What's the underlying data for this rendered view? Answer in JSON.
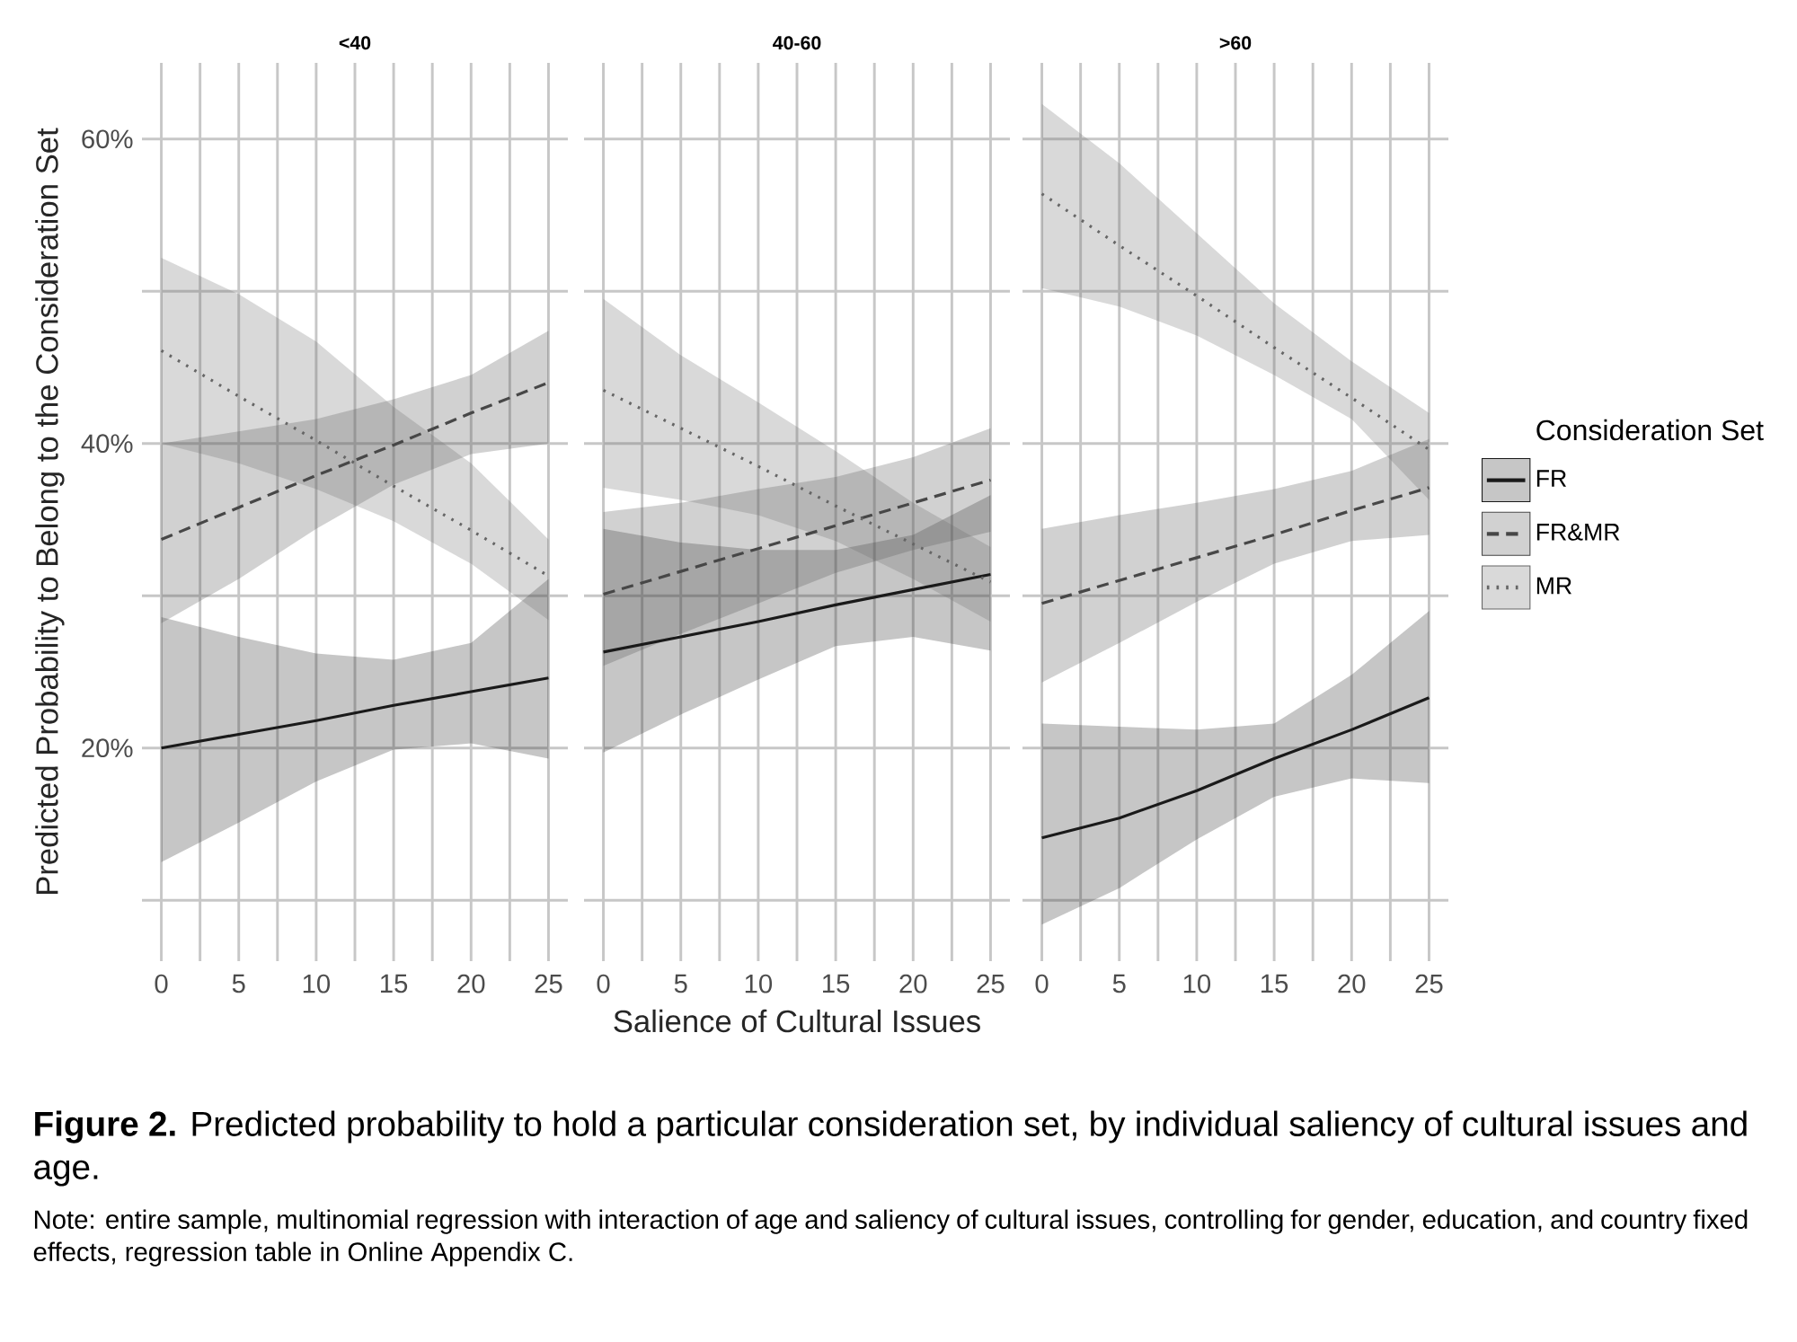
{
  "chart_data": [
    {
      "type": "line",
      "title": "<40",
      "ylabel": "Predicted Probability to Belong to the Consideration Set",
      "x": [
        0,
        5,
        10,
        15,
        20,
        25
      ],
      "xlim": [
        -1.25,
        26.25
      ],
      "ylim": [
        6,
        65
      ],
      "xticks": [
        0,
        {
          "value": 2.5,
          "label": null
        },
        5,
        {
          "value": 7.5,
          "label": null
        },
        10,
        {
          "value": 12.5,
          "label": null
        },
        15,
        {
          "value": 17.5,
          "label": null
        },
        20,
        {
          "value": 22.5,
          "label": null
        },
        25
      ],
      "yticks": [
        {
          "value": 10,
          "label": null
        },
        {
          "value": 20,
          "label": "20%"
        },
        {
          "value": 30,
          "label": null
        },
        {
          "value": 40,
          "label": "40%"
        },
        {
          "value": 50,
          "label": null
        },
        {
          "value": 60,
          "label": "60%"
        }
      ],
      "grid": true,
      "series": [
        {
          "color": "#1a1a1a",
          "line_style": "solid",
          "values": [
            20.0,
            20.9,
            21.8,
            22.8,
            23.7,
            24.6
          ],
          "lower": [
            12.5,
            15.1,
            17.8,
            19.9,
            20.3,
            19.3
          ],
          "upper": [
            28.6,
            27.3,
            26.2,
            25.8,
            26.9,
            31.1
          ]
        },
        {
          "color": "#474747",
          "line_style": "dashed",
          "values": [
            33.7,
            35.8,
            37.9,
            39.9,
            42.0,
            44.0
          ],
          "lower": [
            28.2,
            31.1,
            34.4,
            37.3,
            39.3,
            40.0
          ],
          "upper": [
            40.0,
            40.8,
            41.6,
            42.9,
            44.5,
            47.4
          ]
        },
        {
          "color": "#666666",
          "line_style": "dotted",
          "values": [
            46.1,
            43.1,
            40.2,
            37.2,
            34.3,
            31.3
          ],
          "lower": [
            40.0,
            38.7,
            37.0,
            34.9,
            32.1,
            28.4
          ],
          "upper": [
            52.2,
            49.8,
            46.7,
            42.4,
            38.7,
            33.7
          ]
        }
      ],
      "annotations": [
        "**Figure 2.** Predicted probability to hold a particular consideration set, by individual saliency of cultural issues and age.",
        "Note: entire sample, multinomial regression with interaction of age and saliency of cultural issues, controlling for gender, education, and country fixed effects, regression table in Online Appendix C."
      ]
    },
    {
      "type": "line",
      "title": "40-60",
      "xlabel": "Salience of Cultural Issues",
      "tick_labels": "x",
      "x": [
        0,
        5,
        10,
        15,
        20,
        25
      ],
      "xlim": [
        -1.25,
        26.25
      ],
      "ylim": [
        6,
        65
      ],
      "xticks": [
        0,
        {
          "value": 2.5,
          "label": null
        },
        5,
        {
          "value": 7.5,
          "label": null
        },
        10,
        {
          "value": 12.5,
          "label": null
        },
        15,
        {
          "value": 17.5,
          "label": null
        },
        20,
        {
          "value": 22.5,
          "label": null
        },
        25
      ],
      "yticks": [
        {
          "value": 10,
          "label": null
        },
        {
          "value": 20,
          "label": null
        },
        {
          "value": 30,
          "label": null
        },
        {
          "value": 40,
          "label": null
        },
        {
          "value": 50,
          "label": null
        },
        {
          "value": 60,
          "label": null
        }
      ],
      "grid": true,
      "series": [
        {
          "color": "#1a1a1a",
          "line_style": "solid",
          "values": [
            26.3,
            27.3,
            28.3,
            29.4,
            30.4,
            31.4
          ],
          "lower": [
            19.7,
            22.2,
            24.5,
            26.7,
            27.3,
            26.4
          ],
          "upper": [
            34.4,
            33.5,
            33.0,
            33.0,
            34.0,
            36.6
          ]
        },
        {
          "color": "#474747",
          "line_style": "dashed",
          "values": [
            30.1,
            31.6,
            33.1,
            34.6,
            36.1,
            37.6
          ],
          "lower": [
            25.4,
            27.5,
            29.5,
            31.5,
            33.0,
            34.2
          ],
          "upper": [
            35.5,
            36.1,
            37.0,
            37.8,
            39.1,
            41.0
          ]
        },
        {
          "color": "#666666",
          "line_style": "dotted",
          "values": [
            43.5,
            41.0,
            38.5,
            35.9,
            33.4,
            30.9
          ],
          "lower": [
            37.1,
            36.3,
            35.3,
            33.6,
            31.1,
            28.3
          ],
          "upper": [
            49.5,
            45.8,
            42.7,
            39.5,
            36.1,
            33.2
          ]
        }
      ]
    },
    {
      "type": "line",
      "title": ">60",
      "tick_labels": "x",
      "legend": "right",
      "legend_title": "Consideration Set",
      "x": [
        0,
        5,
        10,
        15,
        20,
        25
      ],
      "xlim": [
        -1.25,
        26.25
      ],
      "ylim": [
        6,
        65
      ],
      "xticks": [
        0,
        {
          "value": 2.5,
          "label": null
        },
        5,
        {
          "value": 7.5,
          "label": null
        },
        10,
        {
          "value": 12.5,
          "label": null
        },
        15,
        {
          "value": 17.5,
          "label": null
        },
        20,
        {
          "value": 22.5,
          "label": null
        },
        25
      ],
      "yticks": [
        {
          "value": 10,
          "label": null
        },
        {
          "value": 20,
          "label": null
        },
        {
          "value": 30,
          "label": null
        },
        {
          "value": 40,
          "label": null
        },
        {
          "value": 50,
          "label": null
        },
        {
          "value": 60,
          "label": null
        }
      ],
      "grid": true,
      "series": [
        {
          "name": "FR",
          "color": "#1a1a1a",
          "line_style": "solid",
          "values": [
            14.1,
            15.4,
            17.2,
            19.3,
            21.2,
            23.3
          ],
          "lower": [
            8.4,
            10.8,
            14.0,
            16.8,
            18.0,
            17.7
          ],
          "upper": [
            21.6,
            21.4,
            21.2,
            21.6,
            24.8,
            29.0
          ]
        },
        {
          "name": "FR&MR",
          "color": "#474747",
          "line_style": "dashed",
          "values": [
            29.5,
            31.0,
            32.5,
            34.0,
            35.6,
            37.1
          ],
          "lower": [
            24.3,
            26.9,
            29.6,
            32.1,
            33.6,
            34.0
          ],
          "upper": [
            34.4,
            35.3,
            36.1,
            37.0,
            38.2,
            40.3
          ]
        },
        {
          "name": "MR",
          "color": "#666666",
          "line_style": "dotted",
          "values": [
            56.4,
            53.0,
            49.7,
            46.3,
            43.0,
            39.6
          ],
          "lower": [
            50.2,
            49.0,
            47.1,
            44.5,
            41.6,
            36.3
          ],
          "upper": [
            62.3,
            58.4,
            53.8,
            49.2,
            45.4,
            42.0
          ]
        }
      ]
    }
  ]
}
